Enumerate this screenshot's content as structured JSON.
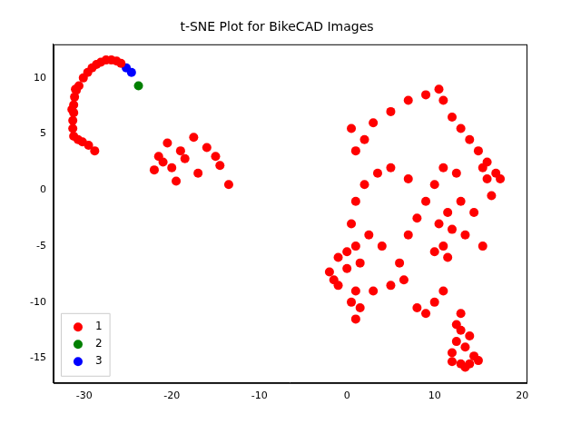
{
  "chart_data": {
    "type": "scatter",
    "title": "t-SNE Plot for BikeCAD Images",
    "xlim": [
      -33.5,
      20.5
    ],
    "xticks": [
      -30,
      -20,
      -10,
      0,
      10,
      20
    ],
    "ylim": [
      -17.2,
      13
    ],
    "yticks": [
      -15,
      -10,
      -5,
      0,
      5,
      10
    ],
    "grid": false,
    "legend": "lower left",
    "marker": "circle",
    "series": [
      {
        "name": "1",
        "color": "#ff0000",
        "x": [
          -31.2,
          -31.3,
          -31.3,
          -31.2,
          -31.2,
          -31.1,
          -30.9,
          -30.6,
          -30.1,
          -29.6,
          -29.1,
          -28.6,
          -28.1,
          -27.5,
          -26.9,
          -26.3,
          -25.8,
          -30.7,
          -30.2,
          -29.5,
          -28.8,
          -31.0,
          -31.4,
          -20.5,
          -19,
          -17.5,
          -21,
          -20,
          -18.5,
          -16,
          -15,
          -14.5,
          -22,
          -19.5,
          -17,
          -13.5,
          -21.5,
          0.5,
          2,
          1,
          3,
          5,
          7,
          9,
          10.5,
          11,
          12,
          13,
          14,
          15,
          16,
          17,
          17.5,
          16.5,
          15.5,
          12.5,
          11,
          10,
          13,
          11.5,
          10.5,
          12,
          13.5,
          11,
          10,
          11.5,
          1,
          2,
          0.5,
          2.5,
          1,
          0,
          -1,
          1.5,
          0,
          -2,
          -1.5,
          -1,
          1,
          0.5,
          1.5,
          1,
          3,
          5,
          6.5,
          8,
          9,
          10,
          11,
          12.5,
          13,
          12.5,
          13.5,
          14,
          12,
          13,
          12,
          14,
          15,
          13.5,
          14.5,
          13,
          6,
          4,
          7,
          8,
          9,
          7,
          5,
          3.5,
          14.5,
          15.5,
          16
        ],
        "y": [
          4.8,
          5.5,
          6.2,
          6.9,
          7.6,
          8.3,
          8.9,
          9.3,
          10,
          10.5,
          10.9,
          11.2,
          11.4,
          11.6,
          11.6,
          11.5,
          11.3,
          4.5,
          4.3,
          4.0,
          3.5,
          9.0,
          7.2,
          4.2,
          3.5,
          4.7,
          2.5,
          2,
          2.8,
          3.8,
          3,
          2.2,
          1.8,
          0.8,
          1.5,
          0.5,
          3,
          5.5,
          4.5,
          3.5,
          6,
          7,
          8,
          8.5,
          9,
          8,
          6.5,
          5.5,
          4.5,
          3.5,
          2.5,
          1.5,
          1,
          -0.5,
          2,
          1.5,
          2,
          0.5,
          -1,
          -2,
          -3,
          -3.5,
          -4,
          -5,
          -5.5,
          -6,
          -1,
          0.5,
          -3,
          -4,
          -5,
          -5.5,
          -6,
          -6.5,
          -7,
          -7.3,
          -8,
          -8.5,
          -9,
          -10,
          -10.5,
          -11.5,
          -9,
          -8.5,
          -8,
          -10.5,
          -11,
          -10,
          -9,
          -12,
          -12.5,
          -13.5,
          -14,
          -13,
          -14.5,
          -15.5,
          -15.3,
          -15.5,
          -15.2,
          -15.8,
          -14.8,
          -11,
          -6.5,
          -5,
          -4,
          -2.5,
          -1,
          1,
          2,
          1.5,
          -2,
          -5,
          1
        ]
      },
      {
        "name": "2",
        "color": "#008000",
        "x": [
          -23.8
        ],
        "y": [
          9.3
        ]
      },
      {
        "name": "3",
        "color": "#0000ff",
        "x": [
          -25.2,
          -24.6
        ],
        "y": [
          10.9,
          10.5
        ]
      }
    ]
  }
}
